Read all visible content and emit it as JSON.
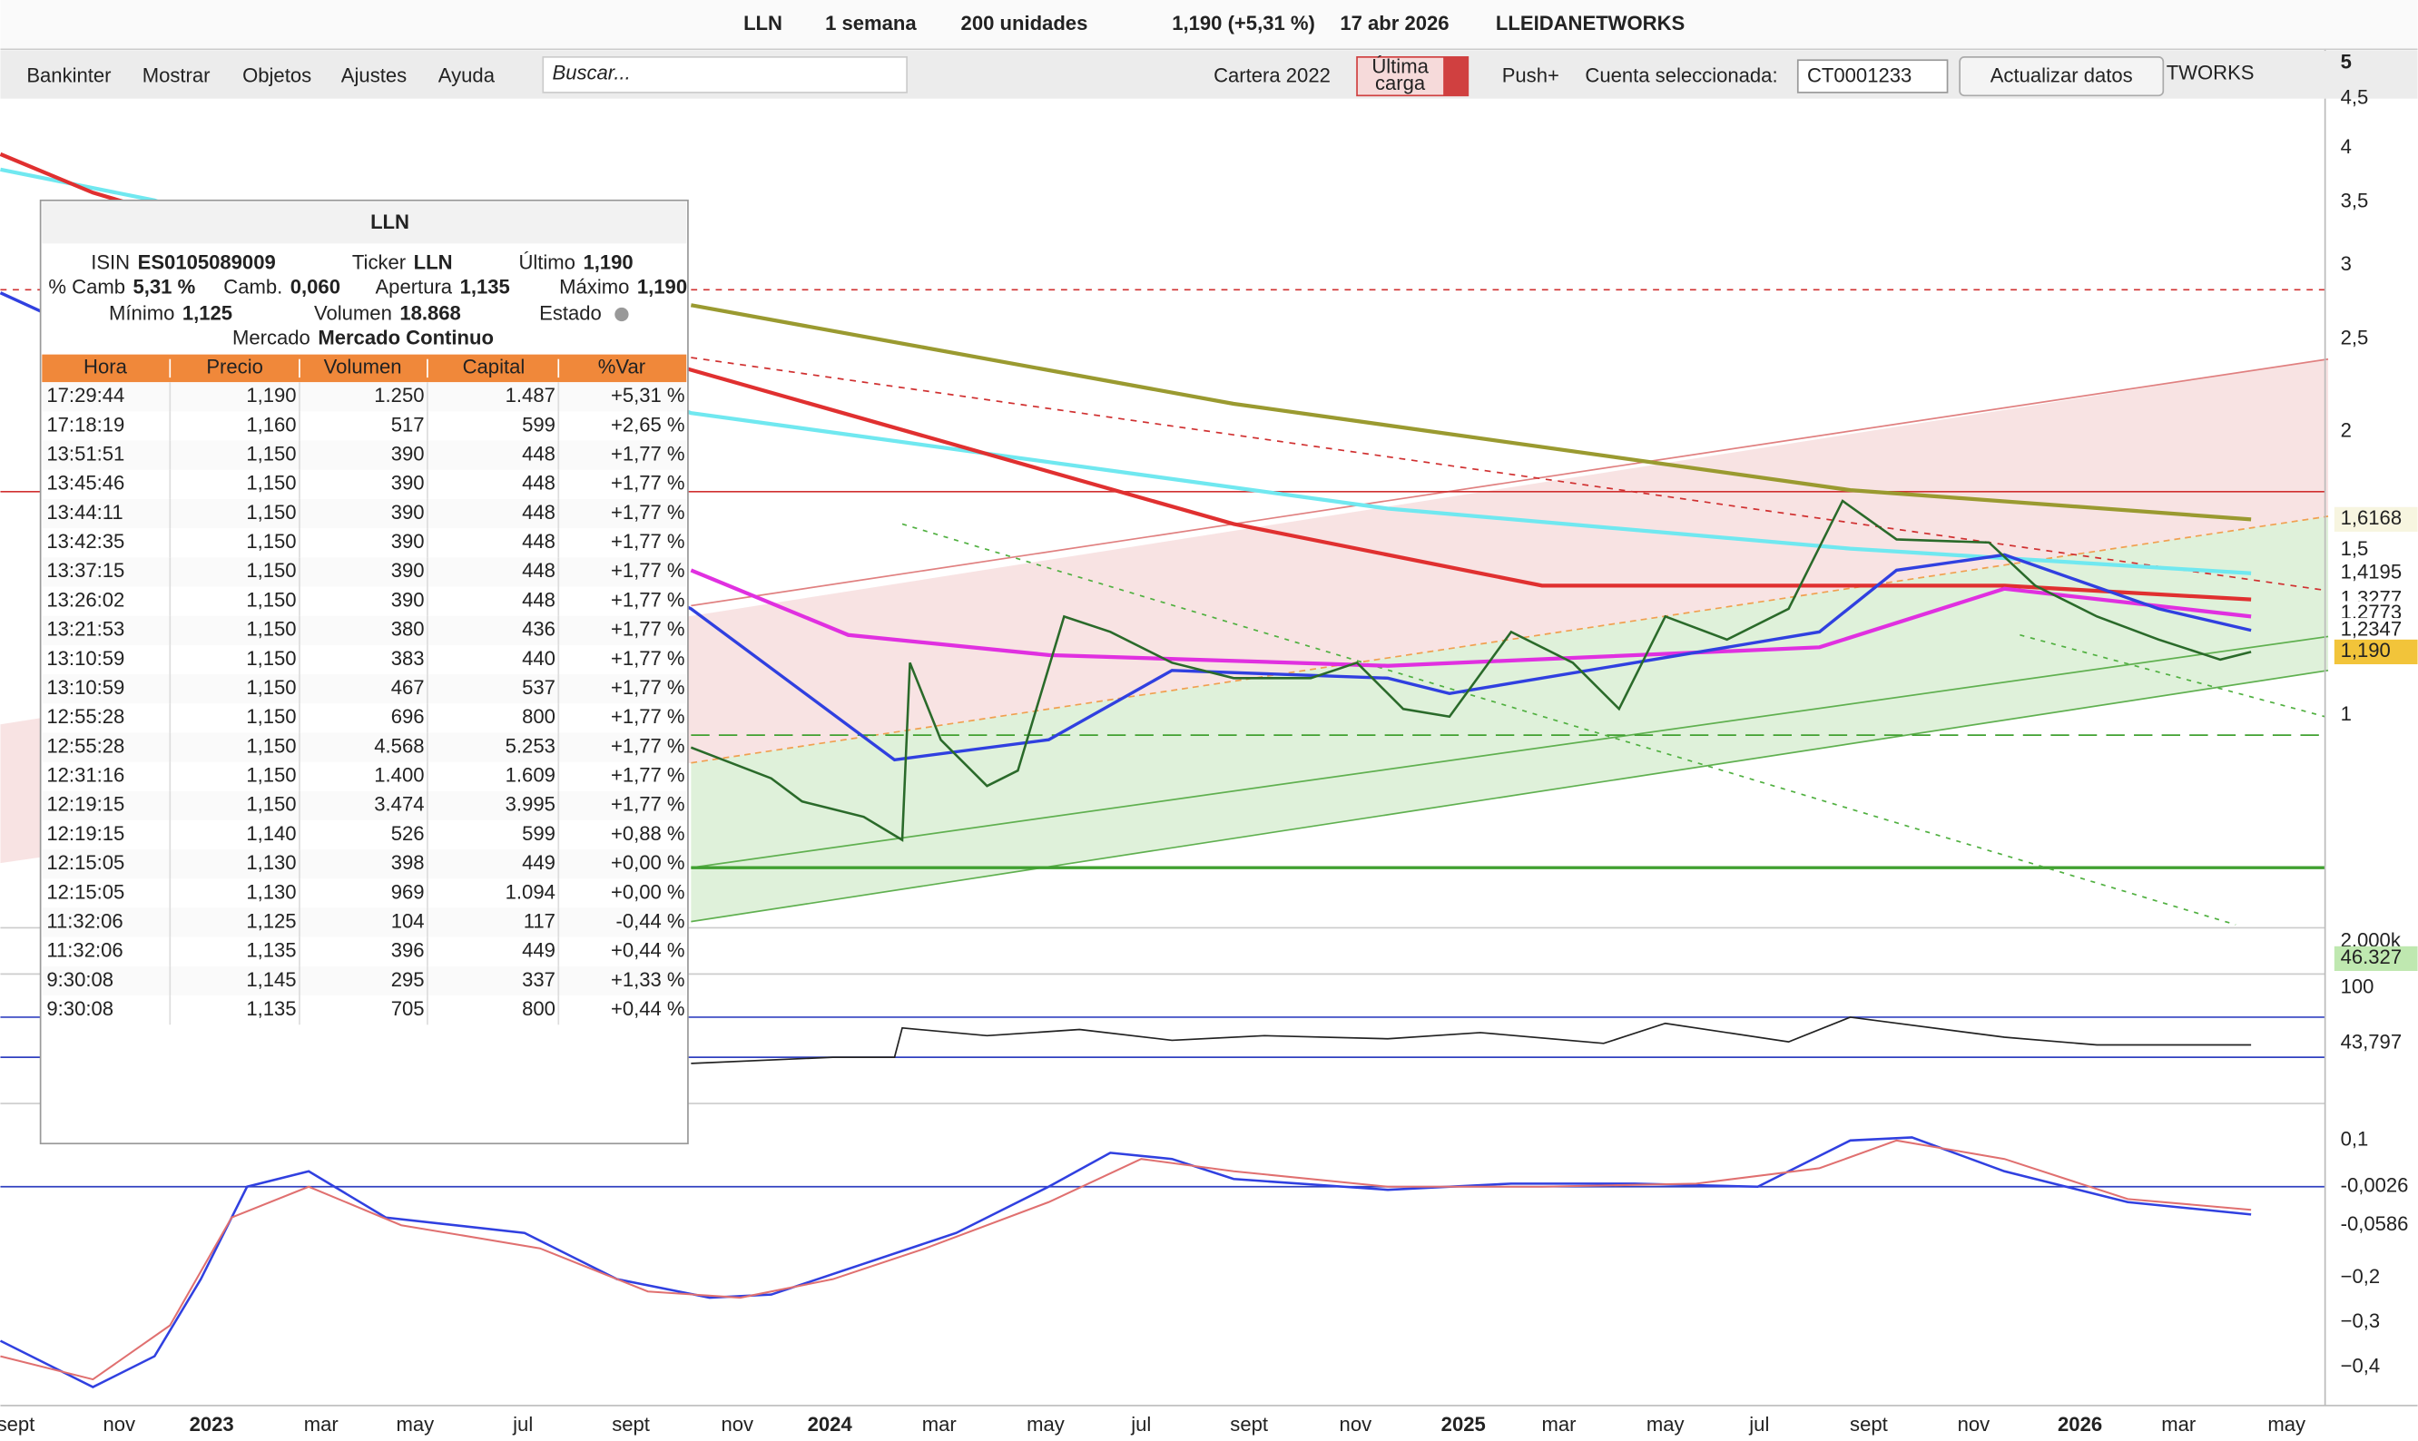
{
  "top_bar": {
    "ticker": "LLN",
    "period": "1 semana",
    "units": "200 unidades",
    "last_change": "1,190 (+5,31 %)",
    "date": "17 abr 2026",
    "name": "LLEIDANETWORKS"
  },
  "menu": [
    "Bankinter",
    "Mostrar",
    "Objetos",
    "Ajustes",
    "Ayuda"
  ],
  "toolbar": {
    "search_placeholder": "Buscar...",
    "portfolio": "Cartera 2022",
    "last_load": [
      "Última",
      "carga"
    ],
    "push": "Push+",
    "account_label": "Cuenta seleccionada:",
    "account": "CT0001233",
    "refresh": "Actualizar datos",
    "watermark": "TWORKS"
  },
  "price_axis": [
    "5",
    "4,5",
    "4",
    "3,5",
    "3",
    "2,5",
    "2",
    "1,5",
    "1"
  ],
  "badges": [
    {
      "text": "1,6168",
      "color": "#6b6b1a",
      "bg": "#f7f5e0"
    },
    {
      "text": "1,4195",
      "color": "#2aa8b8",
      "bg": "#ffffff"
    },
    {
      "text": "1,3277",
      "color": "#d02020",
      "bg": "#ffffff"
    },
    {
      "text": "1,2773",
      "color": "#c030c0",
      "bg": "#ffffff"
    },
    {
      "text": "1,2347",
      "color": "#2040d0",
      "bg": "#ffffff"
    },
    {
      "text": "1,190",
      "color": "#222222",
      "bg": "#f2c43a"
    }
  ],
  "volume_axis": [
    {
      "text": "2.000k",
      "color": "#222222",
      "bg": "#ffffff"
    },
    {
      "text": "46.327",
      "color": "#222222",
      "bg": "#bfe8b0"
    }
  ],
  "rsi_axis": [
    {
      "text": "100",
      "color": "#222222",
      "bg": "#ffffff"
    },
    {
      "text": "43,797",
      "color": "#222222",
      "bg": "#ffffff"
    }
  ],
  "macd_axis": [
    {
      "text": "0,1",
      "color": "#222222",
      "bg": "#ffffff"
    },
    {
      "text": "-0,0026",
      "color": "#d02020",
      "bg": "#ffffff"
    },
    {
      "text": "-0,0586",
      "color": "#2040d0",
      "bg": "#ffffff"
    },
    {
      "text": "−0,2",
      "color": "#222222",
      "bg": "#ffffff"
    },
    {
      "text": "−0,3",
      "color": "#222222",
      "bg": "#ffffff"
    },
    {
      "text": "−0,4",
      "color": "#222222",
      "bg": "#ffffff"
    }
  ],
  "time_axis": [
    "sept",
    "nov",
    "2023",
    "mar",
    "may",
    "jul",
    "sept",
    "nov",
    "2024",
    "mar",
    "may",
    "jul",
    "sept",
    "nov",
    "2025",
    "mar",
    "may",
    "jul",
    "sept",
    "nov",
    "2026",
    "mar",
    "may"
  ],
  "quote_panel": {
    "ticker": "LLN",
    "fields": [
      {
        "label": "ISIN",
        "value": "ES0105089009",
        "color": "#222222"
      },
      {
        "label": "Ticker",
        "value": "LLN",
        "color": "#222222"
      },
      {
        "label": "Último",
        "value": "1,190",
        "color": "#2a8a2a"
      },
      {
        "label": "% Camb",
        "value": "5,31 %",
        "color": "#2a8a2a"
      },
      {
        "label": "Camb.",
        "value": "0,060",
        "color": "#2a8a2a"
      },
      {
        "label": "Apertura",
        "value": "1,135",
        "color": "#222222"
      },
      {
        "label": "Máximo",
        "value": "1,190",
        "color": "#222222"
      },
      {
        "label": "Mínimo",
        "value": "1,125",
        "color": "#222222"
      },
      {
        "label": "Volumen",
        "value": "18.868",
        "color": "#222222"
      },
      {
        "label": "Estado",
        "value": null,
        "color": "#222222"
      },
      {
        "label": "Mercado",
        "value": "Mercado Continuo",
        "color": "#222222"
      }
    ],
    "columns": [
      "Hora",
      "Precio",
      "Volumen",
      "Capital",
      "%Var"
    ],
    "rows": [
      [
        "17:29:44",
        "1,190",
        "1.250",
        "1.487",
        "+5,31 %"
      ],
      [
        "17:18:19",
        "1,160",
        "517",
        "599",
        "+2,65 %"
      ],
      [
        "13:51:51",
        "1,150",
        "390",
        "448",
        "+1,77 %"
      ],
      [
        "13:45:46",
        "1,150",
        "390",
        "448",
        "+1,77 %"
      ],
      [
        "13:44:11",
        "1,150",
        "390",
        "448",
        "+1,77 %"
      ],
      [
        "13:42:35",
        "1,150",
        "390",
        "448",
        "+1,77 %"
      ],
      [
        "13:37:15",
        "1,150",
        "390",
        "448",
        "+1,77 %"
      ],
      [
        "13:26:02",
        "1,150",
        "390",
        "448",
        "+1,77 %"
      ],
      [
        "13:21:53",
        "1,150",
        "380",
        "436",
        "+1,77 %"
      ],
      [
        "13:10:59",
        "1,150",
        "383",
        "440",
        "+1,77 %"
      ],
      [
        "13:10:59",
        "1,150",
        "467",
        "537",
        "+1,77 %"
      ],
      [
        "12:55:28",
        "1,150",
        "696",
        "800",
        "+1,77 %"
      ],
      [
        "12:55:28",
        "1,150",
        "4.568",
        "5.253",
        "+1,77 %"
      ],
      [
        "12:31:16",
        "1,150",
        "1.400",
        "1.609",
        "+1,77 %"
      ],
      [
        "12:19:15",
        "1,150",
        "3.474",
        "3.995",
        "+1,77 %"
      ],
      [
        "12:19:15",
        "1,140",
        "526",
        "599",
        "+0,88 %"
      ],
      [
        "12:15:05",
        "1,130",
        "398",
        "449",
        "+0,00 %"
      ],
      [
        "12:15:05",
        "1,130",
        "969",
        "1.094",
        "+0,00 %"
      ],
      [
        "11:32:06",
        "1,125",
        "104",
        "117",
        "-0,44 %"
      ],
      [
        "11:32:06",
        "1,135",
        "396",
        "449",
        "+0,44 %"
      ],
      [
        "9:30:08",
        "1,145",
        "295",
        "337",
        "+1,33 %"
      ],
      [
        "9:30:08",
        "1,135",
        "705",
        "800",
        "+0,44 %"
      ]
    ],
    "row_colors": [
      "#2a8a2a",
      "#2a8a2a",
      "#222222",
      "#222222",
      "#222222",
      "#222222",
      "#222222",
      "#222222",
      "#222222",
      "#222222",
      "#222222",
      "#222222",
      "#222222",
      "#2a8a2a",
      "#2a8a2a",
      "#222222",
      "#222222",
      "#2a8a2a",
      "#c8202a",
      "#c8202a",
      "#2a8a2a",
      "#222222"
    ]
  }
}
